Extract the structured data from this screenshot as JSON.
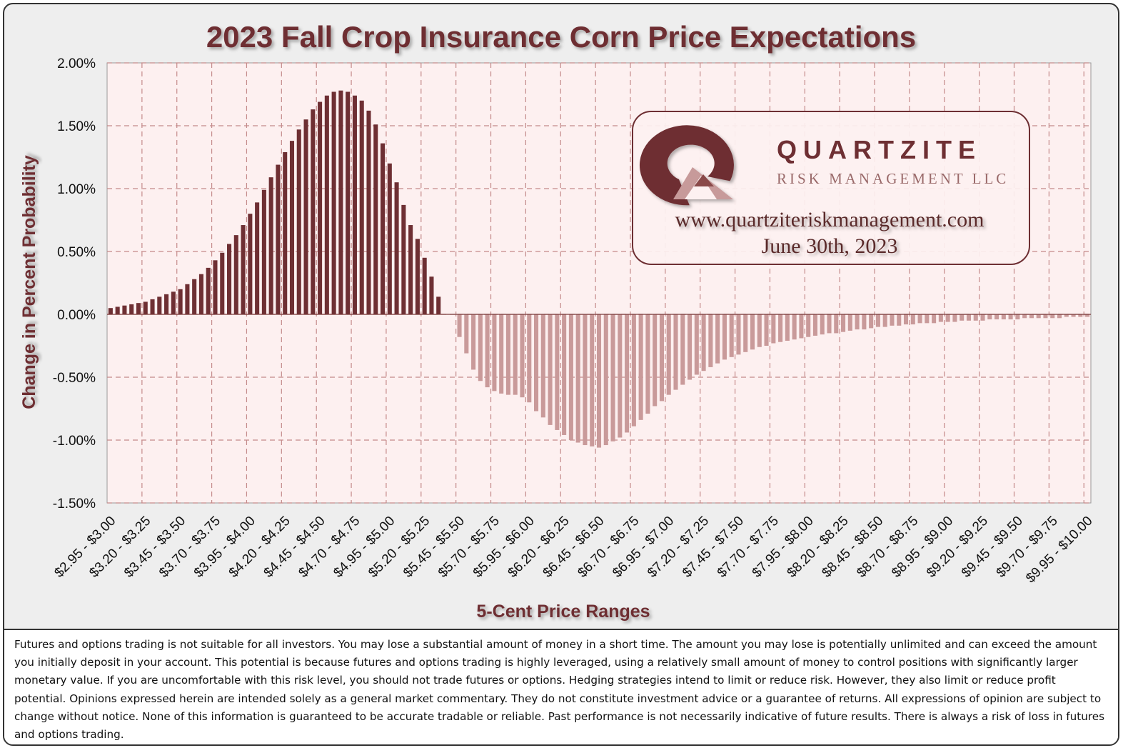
{
  "chart_data": {
    "type": "bar",
    "title": "2023 Fall Crop Insurance Corn Price Expectations",
    "xlabel": "5-Cent Price Ranges",
    "ylabel": "Change in Percent Probability",
    "ylim": [
      -1.5,
      2.0
    ],
    "ytick_labels": [
      "2.00%",
      "1.50%",
      "1.00%",
      "0.50%",
      "0.00%",
      "-0.50%",
      "-1.00%",
      "-1.50%"
    ],
    "ytick_values": [
      2.0,
      1.5,
      1.0,
      0.5,
      0.0,
      -0.5,
      -1.0,
      -1.5
    ],
    "grid": true,
    "positive_color": "#6e2f33",
    "negative_color": "#c99a9a",
    "categories": [
      "$2.95 - $3.00",
      "$3.00 - $3.05",
      "$3.05 - $3.10",
      "$3.10 - $3.15",
      "$3.15 - $3.20",
      "$3.20 - $3.25",
      "$3.25 - $3.30",
      "$3.30 - $3.35",
      "$3.35 - $3.40",
      "$3.40 - $3.45",
      "$3.45 - $3.50",
      "$3.50 - $3.55",
      "$3.55 - $3.60",
      "$3.60 - $3.65",
      "$3.65 - $3.70",
      "$3.70 - $3.75",
      "$3.75 - $3.80",
      "$3.80 - $3.85",
      "$3.85 - $3.90",
      "$3.90 - $3.95",
      "$3.95 - $4.00",
      "$4.00 - $4.05",
      "$4.05 - $4.10",
      "$4.10 - $4.15",
      "$4.15 - $4.20",
      "$4.20 - $4.25",
      "$4.25 - $4.30",
      "$4.30 - $4.35",
      "$4.35 - $4.40",
      "$4.40 - $4.45",
      "$4.45 - $4.50",
      "$4.50 - $4.55",
      "$4.55 - $4.60",
      "$4.60 - $4.65",
      "$4.65 - $4.70",
      "$4.70 - $4.75",
      "$4.75 - $4.80",
      "$4.80 - $4.85",
      "$4.85 - $4.90",
      "$4.90 - $4.95",
      "$4.95 - $5.00",
      "$5.00 - $5.05",
      "$5.05 - $5.10",
      "$5.10 - $5.15",
      "$5.15 - $5.20",
      "$5.20 - $5.25",
      "$5.25 - $5.30",
      "$5.30 - $5.35",
      "$5.35 - $5.40",
      "$5.40 - $5.45",
      "$5.45 - $5.50",
      "$5.50 - $5.55",
      "$5.55 - $5.60",
      "$5.60 - $5.65",
      "$5.65 - $5.70",
      "$5.70 - $5.75",
      "$5.75 - $5.80",
      "$5.80 - $5.85",
      "$5.85 - $5.90",
      "$5.90 - $5.95",
      "$5.95 - $6.00",
      "$6.00 - $6.05",
      "$6.05 - $6.10",
      "$6.10 - $6.15",
      "$6.15 - $6.20",
      "$6.20 - $6.25",
      "$6.25 - $6.30",
      "$6.30 - $6.35",
      "$6.35 - $6.40",
      "$6.40 - $6.45",
      "$6.45 - $6.50",
      "$6.50 - $6.55",
      "$6.55 - $6.60",
      "$6.60 - $6.65",
      "$6.65 - $6.70",
      "$6.70 - $6.75",
      "$6.75 - $6.80",
      "$6.80 - $6.85",
      "$6.85 - $6.90",
      "$6.90 - $6.95",
      "$6.95 - $7.00",
      "$7.00 - $7.05",
      "$7.05 - $7.10",
      "$7.10 - $7.15",
      "$7.15 - $7.20",
      "$7.20 - $7.25",
      "$7.25 - $7.30",
      "$7.30 - $7.35",
      "$7.35 - $7.40",
      "$7.40 - $7.45",
      "$7.45 - $7.50",
      "$7.50 - $7.55",
      "$7.55 - $7.60",
      "$7.60 - $7.65",
      "$7.65 - $7.70",
      "$7.70 - $7.75",
      "$7.75 - $7.80",
      "$7.80 - $7.85",
      "$7.85 - $7.90",
      "$7.90 - $7.95",
      "$7.95 - $8.00",
      "$8.00 - $8.05",
      "$8.05 - $8.10",
      "$8.10 - $8.15",
      "$8.15 - $8.20",
      "$8.20 - $8.25",
      "$8.25 - $8.30",
      "$8.30 - $8.35",
      "$8.35 - $8.40",
      "$8.40 - $8.45",
      "$8.45 - $8.50",
      "$8.50 - $8.55",
      "$8.55 - $8.60",
      "$8.60 - $8.65",
      "$8.65 - $8.70",
      "$8.70 - $8.75",
      "$8.75 - $8.80",
      "$8.80 - $8.85",
      "$8.85 - $8.90",
      "$8.90 - $8.95",
      "$8.95 - $9.00",
      "$9.00 - $9.05",
      "$9.05 - $9.10",
      "$9.10 - $9.15",
      "$9.15 - $9.20",
      "$9.20 - $9.25",
      "$9.25 - $9.30",
      "$9.30 - $9.35",
      "$9.35 - $9.40",
      "$9.40 - $9.45",
      "$9.45 - $9.50",
      "$9.50 - $9.55",
      "$9.55 - $9.60",
      "$9.60 - $9.65",
      "$9.65 - $9.70",
      "$9.70 - $9.75",
      "$9.75 - $9.80",
      "$9.80 - $9.85",
      "$9.85 - $9.90",
      "$9.90 - $9.95",
      "$9.95 - $10.00"
    ],
    "visible_tick_labels": [
      "$2.95 - $3.00",
      "$3.20 - $3.25",
      "$3.45 - $3.50",
      "$3.70 - $3.75",
      "$3.95 - $4.00",
      "$4.20 - $4.25",
      "$4.45 - $4.50",
      "$4.70 - $4.75",
      "$4.95 - $5.00",
      "$5.20 - $5.25",
      "$5.45 - $5.50",
      "$5.70 - $5.75",
      "$5.95 - $6.00",
      "$6.20 - $6.25",
      "$6.45 - $6.50",
      "$6.70 - $6.75",
      "$6.95 - $7.00",
      "$7.20 - $7.25",
      "$7.45 - $7.50",
      "$7.70 - $7.75",
      "$7.95 - $8.00",
      "$8.20 - $8.25",
      "$8.45 - $8.50",
      "$8.70 - $8.75",
      "$8.95 - $9.00",
      "$9.20 - $9.25",
      "$9.45 - $9.50",
      "$9.70 - $9.75",
      "$9.95 - $10.00"
    ],
    "values": [
      0.05,
      0.06,
      0.07,
      0.08,
      0.09,
      0.1,
      0.12,
      0.14,
      0.16,
      0.18,
      0.2,
      0.24,
      0.28,
      0.32,
      0.37,
      0.43,
      0.49,
      0.56,
      0.63,
      0.71,
      0.8,
      0.89,
      0.99,
      1.09,
      1.19,
      1.29,
      1.38,
      1.47,
      1.55,
      1.63,
      1.69,
      1.74,
      1.77,
      1.78,
      1.77,
      1.74,
      1.7,
      1.62,
      1.51,
      1.36,
      1.2,
      1.05,
      0.87,
      0.71,
      0.6,
      0.45,
      0.3,
      0.14,
      0.0,
      0.0,
      -0.18,
      -0.31,
      -0.44,
      -0.53,
      -0.58,
      -0.61,
      -0.63,
      -0.64,
      -0.64,
      -0.66,
      -0.7,
      -0.77,
      -0.82,
      -0.88,
      -0.92,
      -0.96,
      -1.0,
      -1.02,
      -1.04,
      -1.05,
      -1.06,
      -1.04,
      -1.01,
      -0.98,
      -0.94,
      -0.89,
      -0.84,
      -0.79,
      -0.73,
      -0.69,
      -0.64,
      -0.6,
      -0.56,
      -0.52,
      -0.48,
      -0.45,
      -0.42,
      -0.39,
      -0.36,
      -0.34,
      -0.32,
      -0.3,
      -0.28,
      -0.26,
      -0.25,
      -0.23,
      -0.22,
      -0.21,
      -0.2,
      -0.19,
      -0.18,
      -0.17,
      -0.16,
      -0.15,
      -0.15,
      -0.14,
      -0.13,
      -0.12,
      -0.12,
      -0.11,
      -0.1,
      -0.1,
      -0.09,
      -0.09,
      -0.08,
      -0.08,
      -0.07,
      -0.07,
      -0.07,
      -0.06,
      -0.06,
      -0.06,
      -0.05,
      -0.05,
      -0.05,
      -0.05,
      -0.04,
      -0.04,
      -0.04,
      -0.04,
      -0.04,
      -0.03,
      -0.03,
      -0.03,
      -0.03,
      -0.03,
      -0.03,
      -0.02,
      -0.02,
      -0.02,
      -0.02
    ]
  },
  "logo": {
    "company": "QUARTZITE",
    "subtitle": "RISK MANAGEMENT LLC",
    "url": "www.quartziteriskmanagement.com",
    "date": "June 30th, 2023",
    "brand_color": "#6e2f33"
  },
  "disclaimer": "Futures and options trading is not suitable for all investors. You may lose a substantial amount of money in a short time. The amount you may lose is potentially unlimited and can exceed the amount you initially deposit in your account. This potential is because futures and options trading is highly leveraged, using a relatively small amount of money to control positions with significantly larger monetary value. If you are uncomfortable with this risk level, you should not trade futures or options. Hedging strategies intend to limit or reduce risk. However, they also limit or reduce profit potential. Opinions expressed herein are intended solely as a general market commentary. They do not constitute investment advice or a guarantee of returns. All expressions of opinion are subject to change without notice. None of this information is guaranteed to be accurate tradable or reliable. Past performance is not necessarily indicative of future results. There is always a risk of loss in futures and options trading."
}
